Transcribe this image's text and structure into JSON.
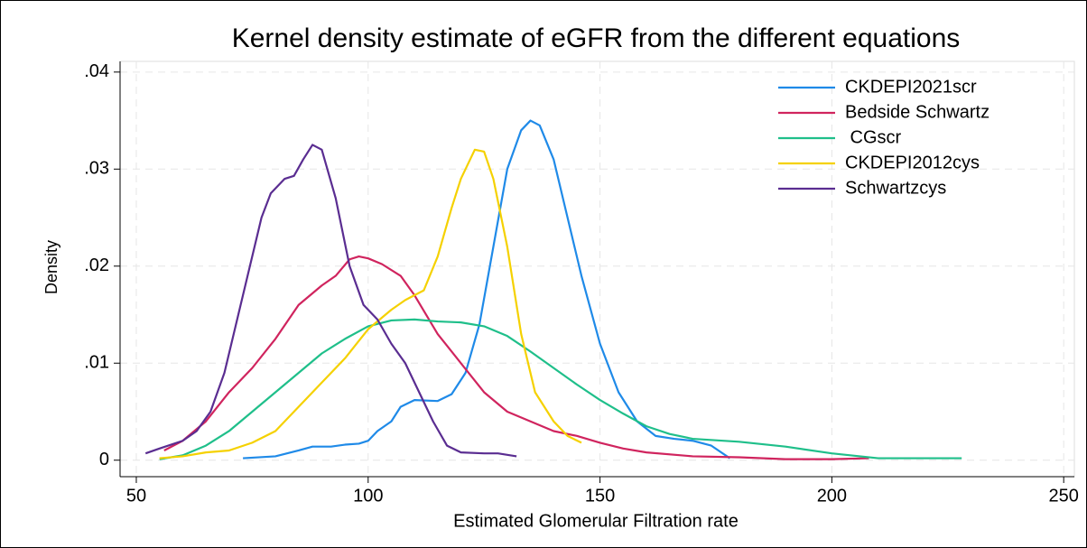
{
  "chart_data": {
    "type": "line",
    "title": "Kernel density estimate of eGFR from the different equations",
    "xlabel": "Estimated Glomerular Filtration rate",
    "ylabel": "Density",
    "xlim": [
      46.5,
      252.3
    ],
    "ylim": [
      -0.0017,
      0.0411
    ],
    "xticks": [
      50,
      100,
      150,
      200,
      250
    ],
    "yticks": [
      0,
      {
        "value": 0.01,
        "label": ".01"
      },
      {
        "value": 0.02,
        "label": ".02"
      },
      {
        "value": 0.03,
        "label": ".03"
      },
      {
        "value": 0.04,
        "label": ".04"
      }
    ],
    "grid": true,
    "legend": "top-right",
    "series": [
      {
        "name": "CKDEPI2021scr",
        "color": "#1f8ae8",
        "x": [
          73,
          80,
          85,
          88,
          92,
          95,
          98,
          100,
          102,
          105,
          107,
          110,
          115,
          118,
          121,
          124,
          127,
          130,
          133,
          135,
          137,
          140,
          143,
          146,
          150,
          154,
          158,
          162,
          166,
          170,
          174,
          178
        ],
        "values": [
          0.0002,
          0.0004,
          0.001,
          0.0014,
          0.0014,
          0.0016,
          0.0017,
          0.002,
          0.003,
          0.004,
          0.0055,
          0.0062,
          0.0061,
          0.0068,
          0.009,
          0.014,
          0.022,
          0.03,
          0.034,
          0.035,
          0.0345,
          0.031,
          0.025,
          0.019,
          0.012,
          0.007,
          0.004,
          0.0025,
          0.0022,
          0.002,
          0.0015,
          0.0002
        ]
      },
      {
        "name": "Bedside Schwartz",
        "color": "#d0245e",
        "x": [
          56,
          60,
          65,
          70,
          75,
          80,
          85,
          90,
          93,
          96,
          98,
          100,
          103,
          107,
          110,
          115,
          120,
          125,
          130,
          135,
          140,
          145,
          150,
          155,
          160,
          170,
          180,
          190,
          200,
          208
        ],
        "values": [
          0.001,
          0.002,
          0.004,
          0.007,
          0.0095,
          0.0125,
          0.016,
          0.018,
          0.019,
          0.0207,
          0.021,
          0.0208,
          0.0202,
          0.019,
          0.017,
          0.013,
          0.01,
          0.007,
          0.005,
          0.004,
          0.003,
          0.0025,
          0.0018,
          0.0012,
          0.0008,
          0.0004,
          0.0003,
          0.0001,
          0.0001,
          0.0002
        ]
      },
      {
        "name": " CGscr",
        "color": "#1fbf8a",
        "x": [
          55,
          60,
          65,
          70,
          75,
          80,
          85,
          90,
          95,
          100,
          105,
          110,
          115,
          120,
          125,
          130,
          135,
          140,
          145,
          150,
          155,
          160,
          165,
          170,
          180,
          190,
          200,
          210,
          220,
          228
        ],
        "values": [
          0.0001,
          0.0005,
          0.0015,
          0.003,
          0.005,
          0.007,
          0.009,
          0.011,
          0.0125,
          0.0138,
          0.0144,
          0.0145,
          0.0143,
          0.0142,
          0.0138,
          0.0128,
          0.0112,
          0.0095,
          0.0078,
          0.0062,
          0.0048,
          0.0035,
          0.0027,
          0.0022,
          0.0019,
          0.0014,
          0.0007,
          0.0002,
          0.0002,
          0.0002
        ]
      },
      {
        "name": "CKDEPI2012cys",
        "color": "#f5d100",
        "x": [
          55,
          60,
          65,
          70,
          75,
          80,
          85,
          90,
          95,
          100,
          105,
          108,
          112,
          115,
          118,
          120,
          123,
          125,
          127,
          130,
          133,
          136,
          140,
          143,
          146
        ],
        "values": [
          0.0002,
          0.0004,
          0.0008,
          0.001,
          0.0018,
          0.003,
          0.0055,
          0.008,
          0.0105,
          0.0135,
          0.0155,
          0.0165,
          0.0175,
          0.021,
          0.026,
          0.029,
          0.032,
          0.0318,
          0.029,
          0.022,
          0.013,
          0.007,
          0.004,
          0.0025,
          0.0018
        ]
      },
      {
        "name": "Schwartzcys",
        "color": "#5a2d91",
        "x": [
          52,
          55,
          60,
          63,
          66,
          69,
          72,
          75,
          77,
          79,
          82,
          84,
          86,
          88,
          90,
          93,
          96,
          99,
          102,
          105,
          108,
          111,
          114,
          117,
          120,
          125,
          128,
          132
        ],
        "values": [
          0.0007,
          0.0012,
          0.002,
          0.003,
          0.005,
          0.009,
          0.015,
          0.021,
          0.025,
          0.0275,
          0.029,
          0.0293,
          0.031,
          0.0325,
          0.032,
          0.027,
          0.02,
          0.016,
          0.0145,
          0.012,
          0.01,
          0.007,
          0.004,
          0.0015,
          0.0008,
          0.0007,
          0.0007,
          0.0004
        ]
      }
    ]
  }
}
